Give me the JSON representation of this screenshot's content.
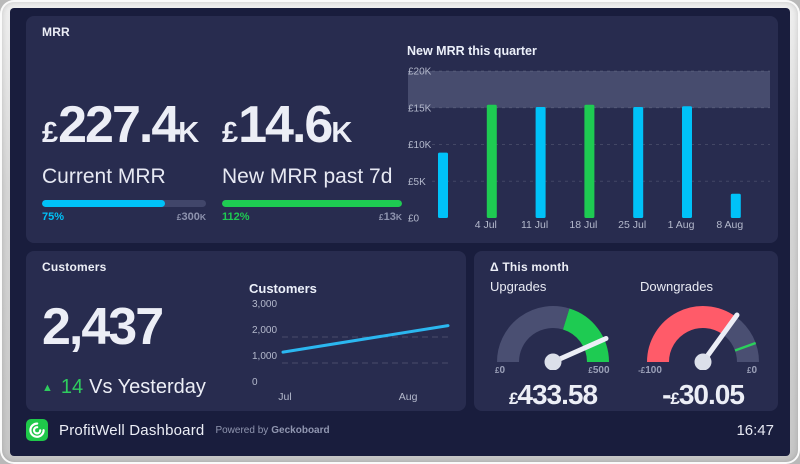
{
  "clock": "16:47",
  "colors": {
    "cyan": "#00c2f8",
    "green": "#1ecb52",
    "red": "#ff5b69",
    "slate": "#4a4f72",
    "band": "#474c6e",
    "panel": "#282c4f",
    "screen": "#191d3d",
    "muted": "#8e93ae",
    "text": "#eceef6",
    "line_blue": "#2bb7f0",
    "needle": "#eceef6",
    "hub": "#dce0ea",
    "marker_green": "#2bd05b",
    "logo_green": "#1fc94a"
  },
  "mrr_panel": {
    "title": "MRR",
    "kpis": [
      {
        "currency": "£",
        "value": "227.4",
        "suffix": "K",
        "label": "Current MRR",
        "percent_label": "75%",
        "fill_pct": 75,
        "target_currency": "£",
        "target_value": "300",
        "target_suffix": "K",
        "color_key": "cyan"
      },
      {
        "currency": "£",
        "value": "14.6",
        "suffix": "K",
        "label": "New MRR past 7d",
        "percent_label": "112%",
        "fill_pct": 100,
        "target_currency": "£",
        "target_value": "13",
        "target_suffix": "K",
        "color_key": "green"
      }
    ]
  },
  "customers_panel": {
    "title": "Customers",
    "value": "2,437",
    "delta_icon": "▲",
    "delta_value": "14",
    "delta_label": "Vs Yesterday"
  },
  "delta_panel": {
    "title": "Δ This month",
    "gauges": [
      {
        "label": "Upgrades",
        "value_sign": "",
        "value_currency": "£",
        "value_number": "433.58",
        "min_currency": "£",
        "min_number": "0",
        "max_currency": "£",
        "max_number": "500"
      },
      {
        "label": "Downgrades",
        "value_sign": "-",
        "value_currency": "£",
        "value_number": "30.05",
        "min_currency": "-£",
        "min_number": "100",
        "max_currency": "£",
        "max_number": "0"
      }
    ]
  },
  "footer": {
    "title": "ProfitWell Dashboard",
    "powered_by": "Powered by",
    "brand": "Geckoboard",
    "logo_icon": "geckoboard-spiral"
  },
  "chart_data": [
    {
      "id": "new-mrr-chart",
      "type": "bar",
      "title": "New MRR this quarter",
      "categories": [
        "",
        "4 Jul",
        "11 Jul",
        "18 Jul",
        "25 Jul",
        "1 Aug",
        "8 Aug"
      ],
      "values": [
        8900,
        15400,
        15100,
        15400,
        15100,
        15200,
        3300
      ],
      "colors": [
        "cyan",
        "green",
        "cyan",
        "green",
        "cyan",
        "cyan",
        "cyan"
      ],
      "yticks": [
        {
          "label": "£0",
          "value": 0
        },
        {
          "label": "£5K",
          "value": 5000
        },
        {
          "label": "£10K",
          "value": 10000
        },
        {
          "label": "£15K",
          "value": 15000
        },
        {
          "label": "£20K",
          "value": 20000
        }
      ],
      "ylim": [
        0,
        20000
      ],
      "goal_band": [
        15000,
        20000
      ],
      "grid": "dashed-horizontal",
      "legend": "none"
    },
    {
      "id": "customers-chart",
      "type": "line",
      "title": "Customers",
      "color": "line_blue",
      "points": [
        {
          "x": 0,
          "value": 1420
        },
        {
          "x": 1,
          "value": 2437
        }
      ],
      "yticks": [
        {
          "label": "3,000",
          "value": 3000
        },
        {
          "label": "2,000",
          "value": 2000
        },
        {
          "label": "1,000",
          "value": 1000
        },
        {
          "label": "0",
          "value": 0
        }
      ],
      "gridline_values": [
        2000,
        1000
      ],
      "xticks": [
        {
          "label": "Jul",
          "f": 0.012
        },
        {
          "label": "Aug",
          "f": 0.758
        }
      ],
      "ylim": [
        0,
        3000
      ]
    },
    {
      "id": "upgrades-gauge",
      "type": "gauge",
      "label": "Upgrades",
      "value": 433.58,
      "min": 0,
      "max": 500,
      "segments": [
        {
          "from": 0,
          "to": 0.595,
          "color": "slate"
        },
        {
          "from": 0.595,
          "to": 1,
          "color": "green"
        }
      ]
    },
    {
      "id": "downgrades-gauge",
      "type": "gauge",
      "label": "Downgrades",
      "value": -30.05,
      "min": -100,
      "max": 0,
      "segments": [
        {
          "from": 0,
          "to": 0.6995,
          "color": "red"
        },
        {
          "from": 0.6995,
          "to": 1,
          "color": "slate"
        }
      ],
      "marker": {
        "fraction": 0.89,
        "color": "marker_green"
      }
    }
  ]
}
